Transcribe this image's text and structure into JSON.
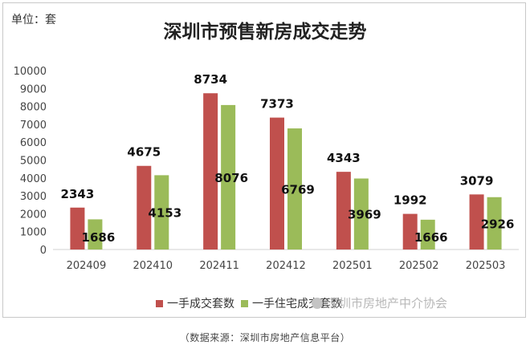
{
  "unit_label": "单位：套",
  "caption": "（数据来源：深圳市房地产信息平台）",
  "watermark": "深圳市房地产中介协会",
  "colors": {
    "series1": "#c0504d",
    "series2": "#9bbb59"
  },
  "chart_data": {
    "type": "bar",
    "title": "深圳市预售新房成交走势",
    "categories": [
      "202409",
      "202410",
      "202411",
      "202412",
      "202501",
      "202502",
      "202503"
    ],
    "series": [
      {
        "name": "一手成交套数",
        "values": [
          2343,
          4675,
          8734,
          7373,
          4343,
          1992,
          3079
        ]
      },
      {
        "name": "一手住宅成交套数",
        "values": [
          1686,
          4153,
          8076,
          6769,
          3969,
          1666,
          2926
        ]
      }
    ],
    "ylim": [
      0,
      10000
    ],
    "yticks": [
      0,
      1000,
      2000,
      3000,
      4000,
      5000,
      6000,
      7000,
      8000,
      9000,
      10000
    ],
    "grid": false,
    "legend_position": "bottom"
  }
}
